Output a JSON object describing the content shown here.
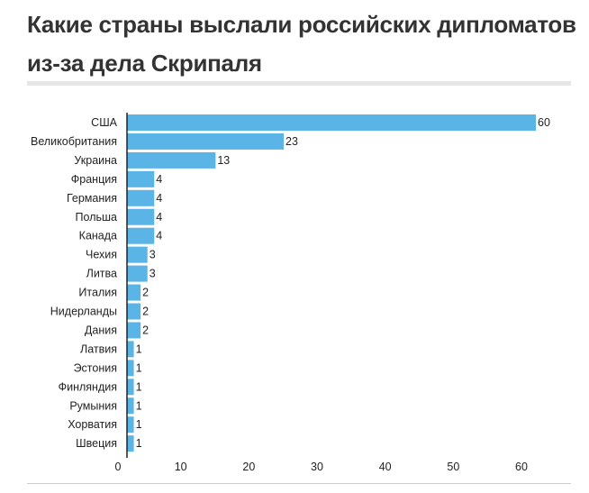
{
  "header": {
    "title": "Какие страны выслали российских дипломатов из-за дела Скрипаля"
  },
  "colors": {
    "bar": "#5ab4e5",
    "axis": "#222222"
  },
  "chart_data": {
    "type": "bar",
    "orientation": "horizontal",
    "title": "Какие страны выслали российских дипломатов из-за дела Скрипаля",
    "xlabel": "",
    "ylabel": "",
    "categories": [
      "США",
      "Великобритания",
      "Украина",
      "Франция",
      "Германия",
      "Польша",
      "Канада",
      "Чехия",
      "Литва",
      "Италия",
      "Нидерланды",
      "Дания",
      "Латвия",
      "Эстония",
      "Финляндия",
      "Румыния",
      "Хорватия",
      "Швеция"
    ],
    "values": [
      60,
      23,
      13,
      4,
      4,
      4,
      4,
      3,
      3,
      2,
      2,
      2,
      1,
      1,
      1,
      1,
      1,
      1
    ],
    "xlim": [
      0,
      60
    ],
    "xticks": [
      0,
      10,
      20,
      30,
      40,
      50,
      60
    ],
    "grid": false,
    "legend": "none"
  }
}
